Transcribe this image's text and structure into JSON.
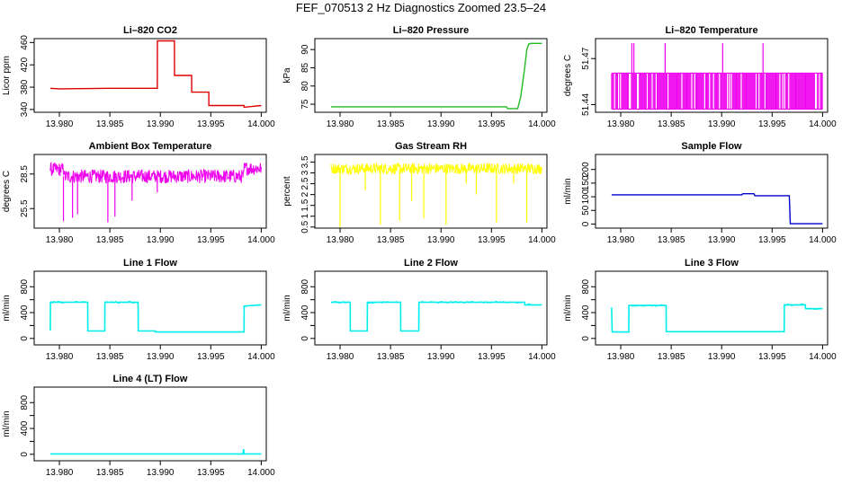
{
  "title": "FEF_070513  2 Hz Diagnostics Zoomed 23.5–24",
  "chart_data": [
    {
      "type": "line",
      "key": "co2",
      "title": "Li–820 CO2",
      "ylabel": "Licor ppm",
      "color": "#dd0000",
      "xlim": [
        13.9775,
        14.0005
      ],
      "ylim": [
        335,
        467
      ],
      "yticks": [
        340,
        380,
        420,
        460
      ],
      "yticklabels": [
        "340",
        "380",
        "420",
        "460"
      ],
      "series": [
        {
          "name": "CO2",
          "x": [
            13.9791,
            13.98,
            13.985,
            13.9897,
            13.98971,
            13.9914,
            13.99141,
            13.9931,
            13.99311,
            13.9948,
            13.99481,
            13.9983,
            13.99831,
            14.0
          ],
          "y": [
            378,
            377,
            378,
            378,
            463,
            463,
            401,
            401,
            371,
            371,
            347,
            347,
            344,
            347
          ]
        }
      ]
    },
    {
      "type": "line",
      "key": "pressure",
      "title": "Li–820 Pressure",
      "ylabel": "kPa",
      "color": "#22bb22",
      "xlim": [
        13.9775,
        14.0005
      ],
      "ylim": [
        72.8,
        93
      ],
      "yticks": [
        75,
        80,
        85,
        90
      ],
      "yticklabels": [
        "75",
        "80",
        "85",
        "90"
      ],
      "series": [
        {
          "name": "Pressure",
          "x": [
            13.9791,
            13.9965,
            13.9966,
            13.9976,
            13.9979,
            13.9983,
            13.9985,
            13.9987,
            13.9989,
            14.0
          ],
          "y": [
            74.3,
            74.3,
            73.8,
            73.8,
            77,
            85,
            90,
            91.5,
            91.7,
            91.7
          ]
        }
      ]
    },
    {
      "type": "line",
      "key": "licor_temp",
      "title": "Li–820 Temperature",
      "ylabel": "degrees C",
      "color": "#ee00ee",
      "xlim": [
        13.9775,
        14.0005
      ],
      "ylim": [
        51.435,
        51.483
      ],
      "yticks": [
        51.44,
        51.47
      ],
      "yticklabels": [
        "51.44",
        "51.47"
      ],
      "series": [
        {
          "name": "Temperature",
          "x": [],
          "y": []
        }
      ],
      "levels": [
        51.437,
        51.4605
      ],
      "spikes_x": [
        13.9811,
        13.9813,
        13.9844,
        13.9901,
        13.9941
      ],
      "spike_top": 51.48
    },
    {
      "type": "line",
      "key": "ambient_temp",
      "title": "Ambient Box Temperature",
      "ylabel": "degrees C",
      "color": "#ee00ee",
      "xlim": [
        13.9775,
        14.0005
      ],
      "ylim": [
        23.8,
        30.2
      ],
      "yticks": [
        25.5,
        28.5
      ],
      "yticklabels": [
        "25.5",
        "28.5"
      ],
      "baseline": 28.3,
      "noise": 0.6,
      "series": [
        {
          "name": "Ambient",
          "x": [],
          "y": []
        }
      ],
      "spikes": [
        [
          13.9804,
          24.4
        ],
        [
          13.9813,
          24.7
        ],
        [
          13.9818,
          25.0
        ],
        [
          13.9848,
          24.3
        ],
        [
          13.9855,
          24.8
        ],
        [
          13.9872,
          26.2
        ],
        [
          13.9897,
          26.9
        ]
      ]
    },
    {
      "type": "line",
      "key": "rh",
      "title": "Gas Stream RH",
      "ylabel": "percent",
      "color": "#ffff00",
      "xlim": [
        13.9775,
        14.0005
      ],
      "ylim": [
        0.45,
        3.85
      ],
      "yticks": [
        0.5,
        1,
        1.5,
        2,
        2.5,
        3,
        3.5
      ],
      "yticklabels": [
        "0.5",
        "1",
        "1.5",
        "2",
        "2.5",
        "3",
        "3.5"
      ],
      "baseline": 3.2,
      "noise": 0.25,
      "series": [
        {
          "name": "RH",
          "x": [],
          "y": []
        }
      ],
      "spikes": [
        [
          13.98,
          0.5
        ],
        [
          13.9825,
          2.2
        ],
        [
          13.984,
          0.6
        ],
        [
          13.9859,
          0.8
        ],
        [
          13.9871,
          1.7
        ],
        [
          13.9883,
          0.9
        ],
        [
          13.9905,
          0.6
        ],
        [
          13.9925,
          2.5
        ],
        [
          13.9935,
          2.0
        ],
        [
          13.9955,
          0.7
        ],
        [
          13.9972,
          2.5
        ],
        [
          13.9985,
          0.7
        ]
      ]
    },
    {
      "type": "line",
      "key": "sample_flow",
      "title": "Sample Flow",
      "ylabel": "ml/min",
      "color": "#0000cc",
      "xlim": [
        13.9775,
        14.0005
      ],
      "ylim": [
        -15,
        255
      ],
      "yticks": [
        0,
        50,
        100,
        150,
        200
      ],
      "yticklabels": [
        "0",
        "50",
        "100",
        "150",
        "200"
      ],
      "series": [
        {
          "name": "Sample",
          "x": [
            13.9791,
            13.992,
            13.9921,
            13.9932,
            13.9933,
            13.9967,
            13.9968,
            14.0
          ],
          "y": [
            107,
            107,
            111,
            111,
            104,
            104,
            1,
            1
          ]
        }
      ]
    },
    {
      "type": "line",
      "key": "line1",
      "title": "Line 1 Flow",
      "ylabel": "ml/min",
      "color": "#00eeee",
      "xlim": [
        13.9775,
        14.0005
      ],
      "ylim": [
        -100,
        1040
      ],
      "yticks": [
        0,
        200,
        400,
        600,
        800
      ],
      "yticklabels": [
        "0",
        "400",
        "800"
      ],
      "ytickshow": [
        0,
        400,
        800
      ],
      "series": [
        {
          "name": "Line 1",
          "x": [
            13.9791,
            13.97911,
            13.9828,
            13.98281,
            13.9845,
            13.98451,
            13.9878,
            13.98781,
            13.9895,
            13.98951,
            13.9983,
            13.99831,
            14.0
          ],
          "y": [
            120,
            560,
            560,
            115,
            115,
            560,
            560,
            115,
            115,
            100,
            100,
            500,
            520
          ]
        }
      ]
    },
    {
      "type": "line",
      "key": "line2",
      "title": "Line 2 Flow",
      "ylabel": "ml/min",
      "color": "#00eeee",
      "xlim": [
        13.9775,
        14.0005
      ],
      "ylim": [
        -100,
        1040
      ],
      "yticks": [
        0,
        200,
        400,
        600,
        800
      ],
      "yticklabels": [
        "0",
        "400",
        "800"
      ],
      "ytickshow": [
        0,
        400,
        800
      ],
      "series": [
        {
          "name": "Line 2",
          "x": [
            13.9791,
            13.981,
            13.98101,
            13.9827,
            13.98271,
            13.986,
            13.98601,
            13.9878,
            13.98781,
            13.9983,
            13.99831,
            14.0
          ],
          "y": [
            560,
            560,
            115,
            115,
            560,
            560,
            115,
            115,
            560,
            560,
            520,
            520
          ]
        }
      ]
    },
    {
      "type": "line",
      "key": "line3",
      "title": "Line 3 Flow",
      "ylabel": "ml/min",
      "color": "#00eeee",
      "xlim": [
        13.9775,
        14.0005
      ],
      "ylim": [
        -100,
        1040
      ],
      "yticks": [
        0,
        200,
        400,
        600,
        800
      ],
      "yticklabels": [
        "0",
        "400",
        "800"
      ],
      "ytickshow": [
        0,
        400,
        800
      ],
      "series": [
        {
          "name": "Line 3",
          "x": [
            13.9791,
            13.97915,
            13.97925,
            13.9808,
            13.98081,
            13.9845,
            13.98451,
            13.9962,
            13.99621,
            13.9983,
            13.99831,
            14.0
          ],
          "y": [
            480,
            100,
            100,
            100,
            510,
            510,
            105,
            105,
            520,
            520,
            460,
            460
          ]
        }
      ]
    },
    {
      "type": "line",
      "key": "line4",
      "title": "Line 4 (LT) Flow",
      "ylabel": "ml/min",
      "color": "#00eeee",
      "xlim": [
        13.9775,
        14.0005
      ],
      "ylim": [
        -100,
        1040
      ],
      "yticks": [
        0,
        200,
        400,
        600,
        800
      ],
      "yticklabels": [
        "0",
        "400",
        "800"
      ],
      "ytickshow": [
        0,
        400,
        800
      ],
      "series": [
        {
          "name": "Line 4",
          "x": [
            13.9791,
            13.9982,
            13.99825,
            13.9983,
            13.99835,
            14.0
          ],
          "y": [
            5,
            5,
            80,
            5,
            5,
            5
          ]
        }
      ]
    }
  ],
  "xticks": [
    13.98,
    13.985,
    13.99,
    13.995,
    14.0
  ],
  "xticklabels": [
    "13.980",
    "13.985",
    "13.990",
    "13.995",
    "14.000"
  ]
}
